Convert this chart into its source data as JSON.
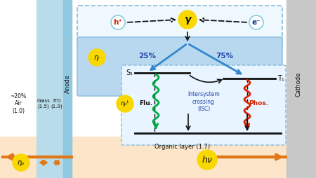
{
  "fig_width": 4.5,
  "fig_height": 2.54,
  "dpi": 100,
  "bg_color": "#ffffff",
  "glass_color": "#b8dcea",
  "ito_color": "#b8dcea",
  "anode_color": "#b8dcea",
  "cathode_color": "#c8c8c8",
  "organic_bg_color": "#fce5c8",
  "recomb_bg_color": "#b8d8f0",
  "exciton_bg_color": "#e8f4ff",
  "orange": "#e07818",
  "yellow": "#f8d800",
  "blue_arrow": "#3388cc",
  "green_arrow": "#00aa44",
  "red_arrow": "#dd2200",
  "black": "#111111",
  "dark_blue_text": "#2244aa",
  "labels": {
    "air": "~20%\nAir\n(1.0)",
    "glass": "Glass\n(1.5)",
    "ito": "ITO\n(1.9)",
    "anode": "Anode",
    "cathode": "Cathode",
    "organic": "Organic layer (1.7)",
    "flu": "Flu.",
    "phos": "Phos.",
    "isc": "Intersystem\ncrossing\n(ISC)",
    "s1": "S₁",
    "t1": "T₁",
    "hplus": "h⁺",
    "eminus": "e⁻",
    "gamma": "γ",
    "hnu": "hν",
    "eta_r": "ηᵣ",
    "eta_pl": "ηₚᴸ",
    "eta_p": "ηₚ",
    "pct25": "25%",
    "pct75": "75%"
  }
}
